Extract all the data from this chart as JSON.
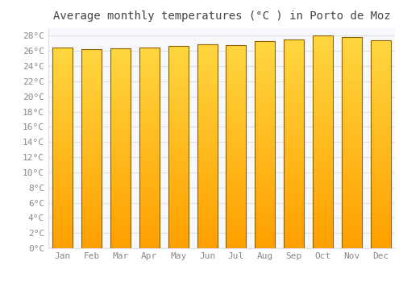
{
  "title": "Average monthly temperatures (°C ) in Porto de Moz",
  "months": [
    "Jan",
    "Feb",
    "Mar",
    "Apr",
    "May",
    "Jun",
    "Jul",
    "Aug",
    "Sep",
    "Oct",
    "Nov",
    "Dec"
  ],
  "temperatures": [
    26.5,
    26.2,
    26.3,
    26.5,
    26.7,
    26.9,
    26.8,
    27.3,
    27.5,
    28.0,
    27.8,
    27.4
  ],
  "bar_color_top": "#FFD740",
  "bar_color_bottom": "#FFA000",
  "bar_edge_color": "#8B6000",
  "background_color": "#ffffff",
  "plot_bg_color": "#f8f8ff",
  "grid_color": "#e0e0e0",
  "ylim": [
    0,
    29
  ],
  "ytick_step": 2,
  "title_fontsize": 10,
  "tick_fontsize": 8,
  "tick_color": "#888888",
  "title_color": "#444444"
}
